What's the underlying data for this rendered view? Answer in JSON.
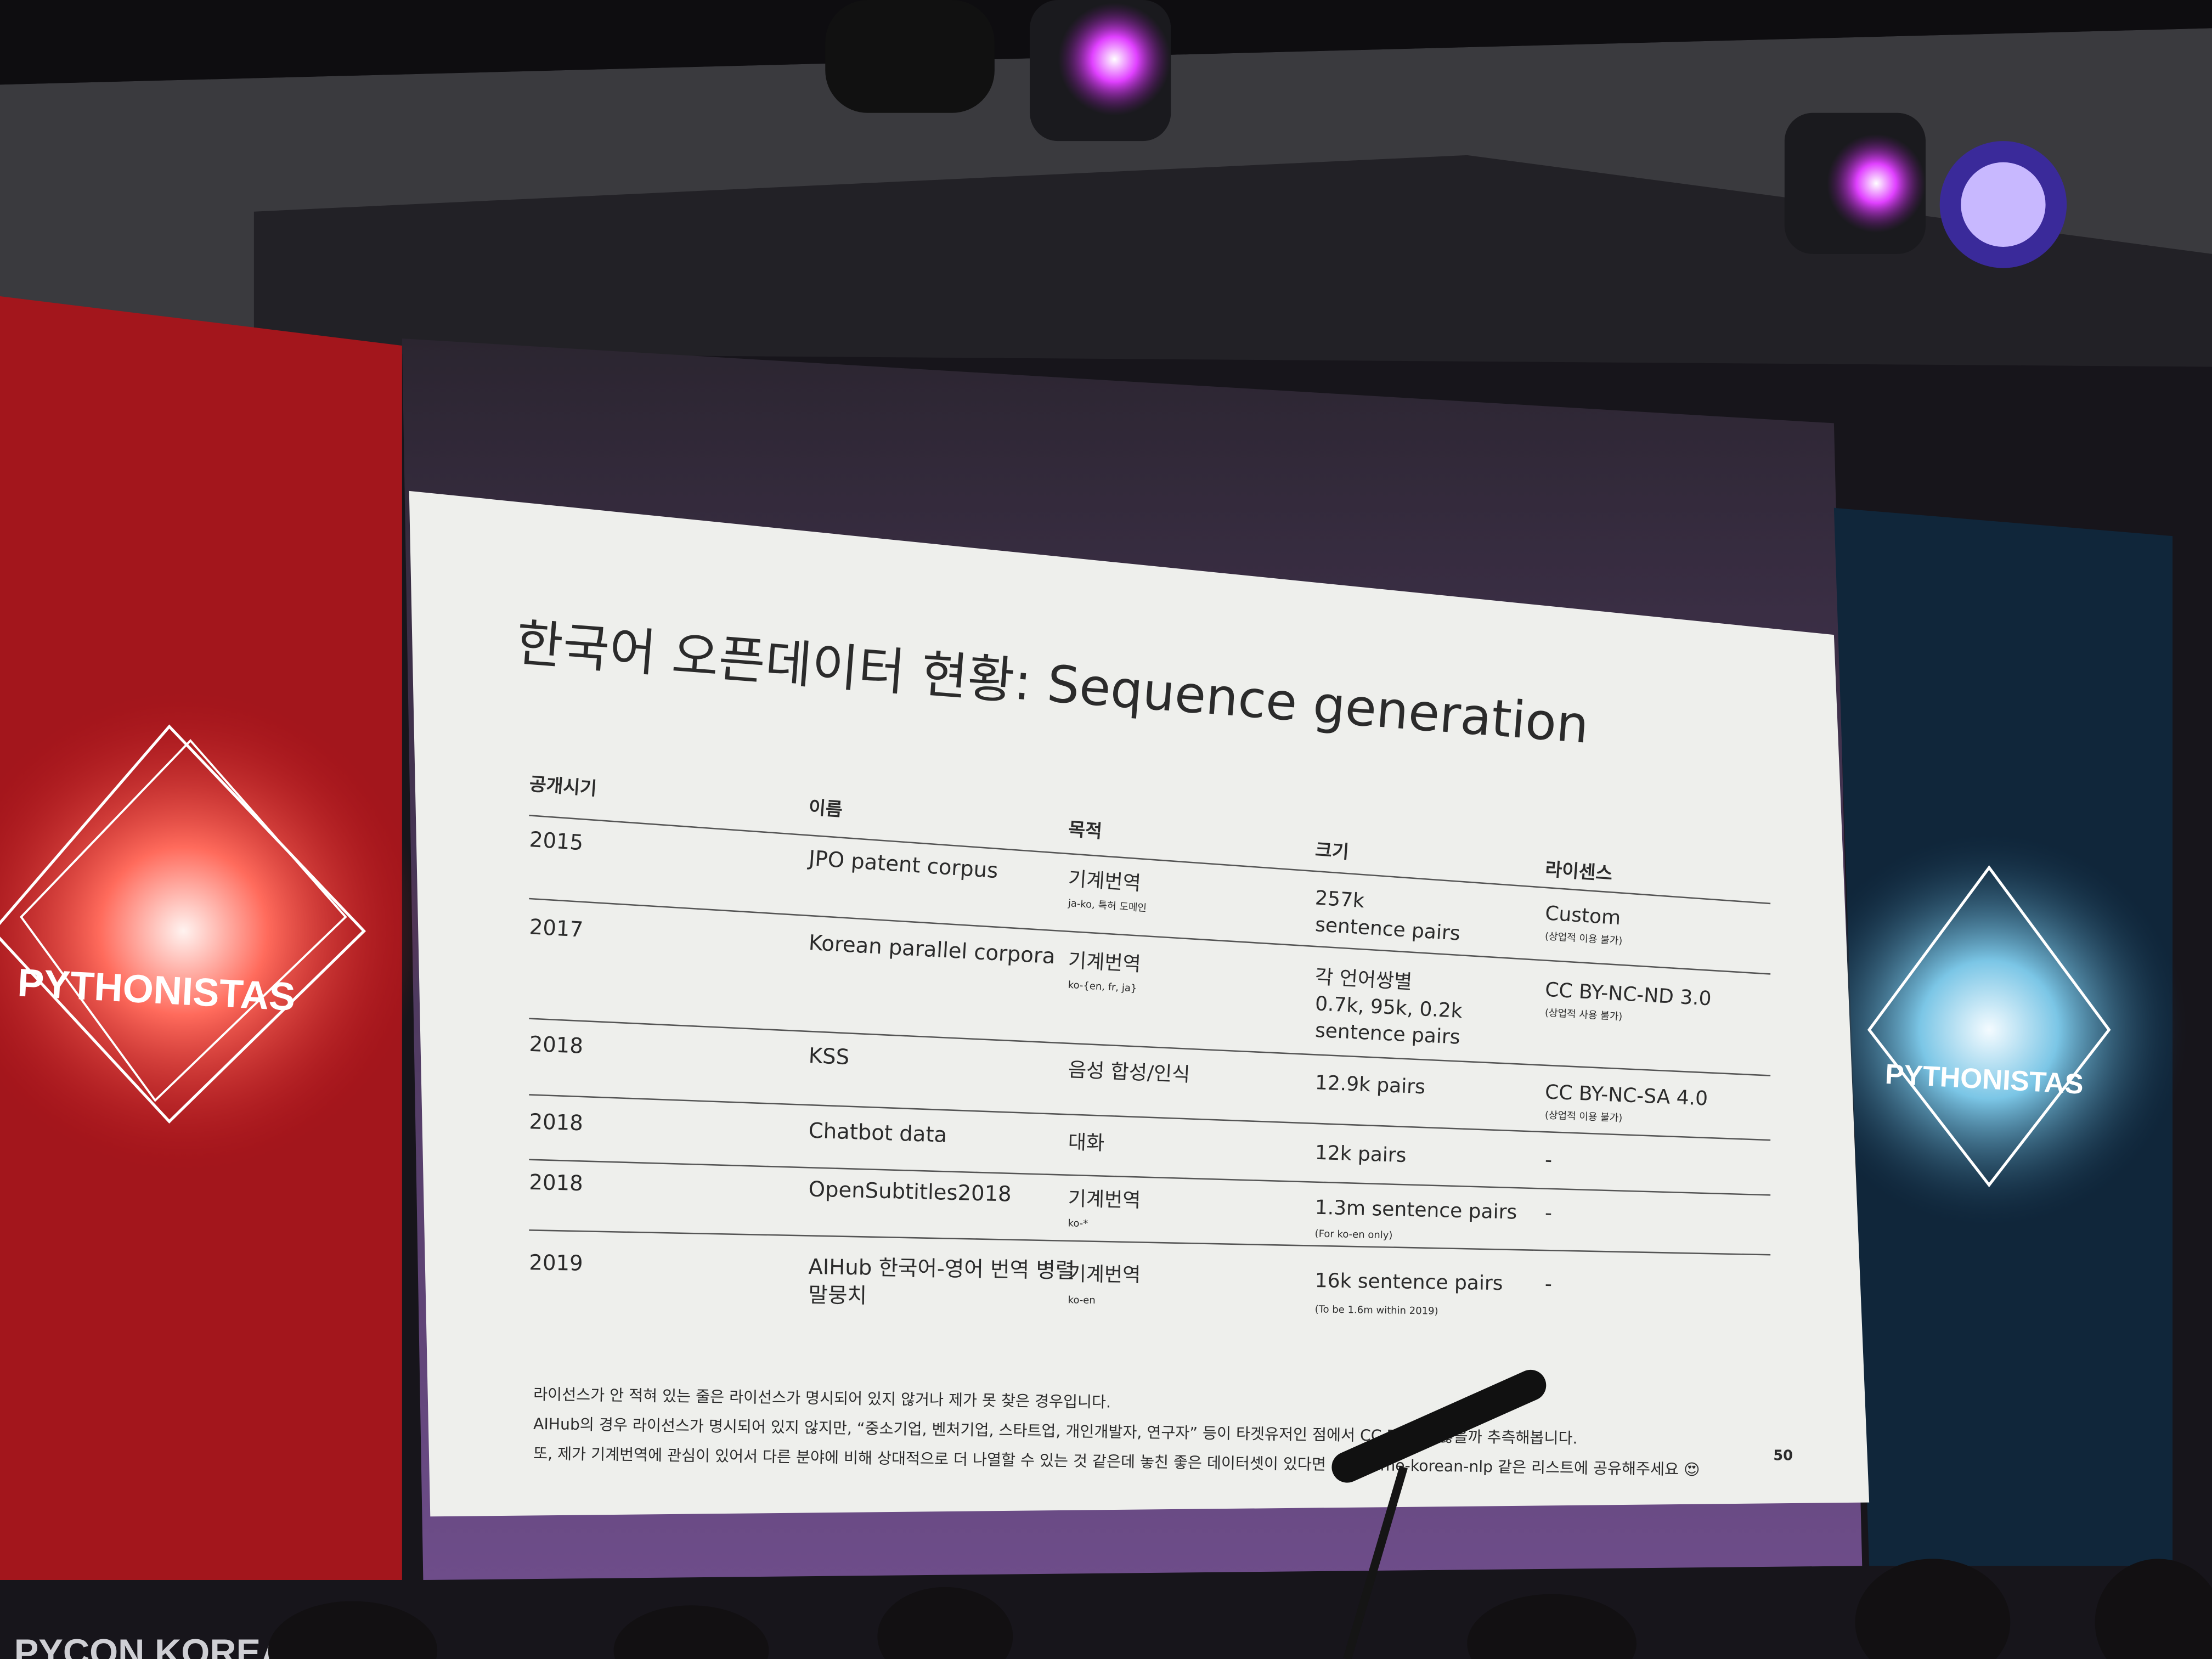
{
  "slide": {
    "title": "한국어 오픈데이터 현황: Sequence generation",
    "table": {
      "header": [
        "공개시기",
        "이름",
        "목적",
        "크기",
        "라이센스"
      ],
      "rows": [
        {
          "year": "2015",
          "name": [
            "JPO patent corpus"
          ],
          "purpose": "기계번역",
          "purpose_note": "ja-ko, 특허 도메인",
          "size": [
            "257k",
            "sentence pairs"
          ],
          "license": "Custom",
          "license_note": "(상업적 이용 불가)"
        },
        {
          "year": "2017",
          "name": [
            "Korean parallel corpora"
          ],
          "purpose": "기계번역",
          "purpose_note": "ko-{en, fr, ja}",
          "size": [
            "각 언어쌍별",
            "0.7k, 95k, 0.2k",
            "sentence pairs"
          ],
          "license": "CC BY-NC-ND 3.0",
          "license_note": "(상업적 사용 불가)"
        },
        {
          "year": "2018",
          "name": [
            "KSS"
          ],
          "purpose": "음성 합성/인식",
          "size": [
            "12.9k pairs"
          ],
          "license": "CC BY-NC-SA 4.0",
          "license_note": "(상업적 이용 불가)"
        },
        {
          "year": "2018",
          "name": [
            "Chatbot data"
          ],
          "purpose": "대화",
          "size": [
            "12k pairs"
          ],
          "license": "-"
        },
        {
          "year": "2018",
          "name": [
            "OpenSubtitles2018"
          ],
          "purpose": "기계번역",
          "purpose_note": "ko-*",
          "size": [
            "1.3m sentence pairs"
          ],
          "size_note": "(For ko-en only)",
          "license": "-"
        },
        {
          "year": "2019",
          "name": [
            "AIHub 한국어-영어 번역 병렬",
            "말뭉치"
          ],
          "purpose": "기계번역",
          "purpose_note": "ko-en",
          "size": [
            "16k sentence pairs"
          ],
          "size_note": "(To be 1.6m within 2019)",
          "license": "-"
        }
      ]
    },
    "footnotes": [
      "라이선스가 안 적혀 있는 줄은 라이선스가 명시되어 있지 않거나 제가 못 찾은 경우입니다.",
      "AIHub의 경우 라이선스가 명시되어 있지 않지만, “중소기업, 벤처기업, 스타트업, 개인개발자, 연구자” 등이 타겟유저인 점에서 CC BY이지 않을까 추측해봅니다.",
      "또, 제가 기계번역에 관심이 있어서 다른 분야에 비해 상대적으로 더 나열할 수 있는 것 같은데 놓친 좋은 데이터셋이 있다면 awesome-korean-nlp 같은 리스트에 공유해주세요 😍"
    ],
    "page_number": "50"
  },
  "signs": [
    "PYTHONISTAS",
    "PYTHONISTAS"
  ],
  "banner": "PYCON KOREA"
}
